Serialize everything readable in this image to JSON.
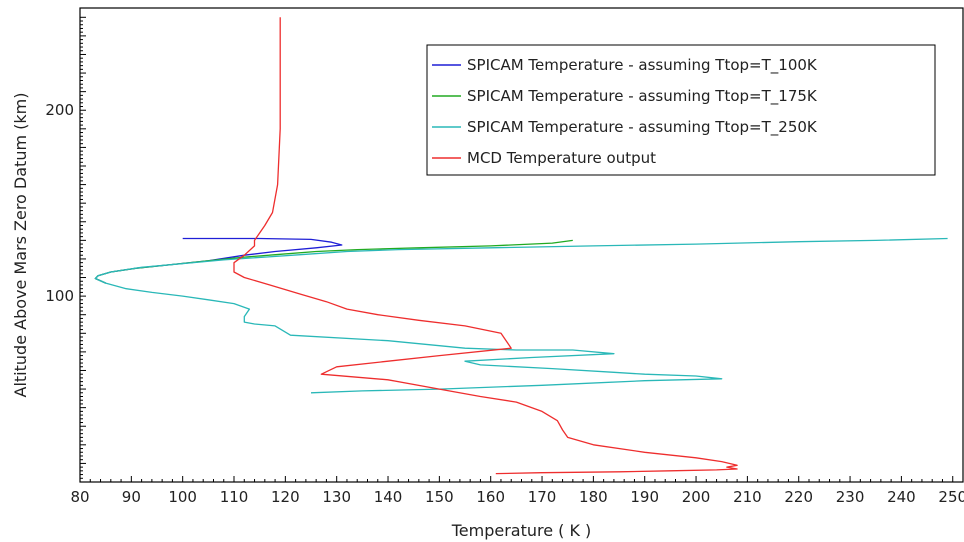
{
  "chart_data": {
    "type": "line",
    "title": "",
    "xlabel": "Temperature ( K )",
    "ylabel": "Altitude Above Mars Zero Datum (km)",
    "xlim": [
      80,
      252
    ],
    "ylim": [
      0,
      255
    ],
    "x_ticks": [
      80,
      90,
      100,
      110,
      120,
      130,
      140,
      150,
      160,
      170,
      180,
      190,
      200,
      210,
      220,
      230,
      240,
      250
    ],
    "y_ticks": [
      100,
      200
    ],
    "grid": false,
    "legend_position": "top-right",
    "series": [
      {
        "name": "SPICAM Temperature - assuming Ttop=T_100K",
        "color": "#1f1fd6",
        "points": [
          [
            100,
            131
          ],
          [
            115,
            131
          ],
          [
            125,
            130.5
          ],
          [
            129,
            129
          ],
          [
            131,
            127.5
          ],
          [
            126,
            126
          ],
          [
            118,
            124
          ],
          [
            112,
            122
          ],
          [
            105,
            119
          ],
          [
            98,
            117
          ],
          [
            91,
            115
          ],
          [
            86,
            113
          ],
          [
            83.5,
            111
          ],
          [
            83,
            109.5
          ],
          [
            85,
            107
          ]
        ]
      },
      {
        "name": "SPICAM Temperature - assuming Ttop=T_175K",
        "color": "#22aa22",
        "points": [
          [
            176,
            130
          ],
          [
            172,
            128.5
          ],
          [
            160,
            127
          ],
          [
            146,
            126
          ],
          [
            134,
            125
          ],
          [
            126,
            124
          ],
          [
            119,
            122.5
          ],
          [
            112,
            121
          ],
          [
            105,
            119
          ],
          [
            98,
            117
          ],
          [
            91,
            115
          ],
          [
            86,
            113
          ],
          [
            83.5,
            111
          ],
          [
            83,
            109.5
          ],
          [
            85,
            107
          ]
        ]
      },
      {
        "name": "SPICAM Temperature - assuming Ttop=T_250K",
        "color": "#2ab8b8",
        "points": [
          [
            249,
            131
          ],
          [
            235,
            130
          ],
          [
            220,
            129.3
          ],
          [
            200,
            128
          ],
          [
            180,
            127
          ],
          [
            160,
            126
          ],
          [
            142,
            125
          ],
          [
            132,
            124
          ],
          [
            124,
            122.5
          ],
          [
            116,
            121
          ],
          [
            108,
            119.5
          ],
          [
            100,
            117.5
          ],
          [
            92,
            115.5
          ],
          [
            86,
            113
          ],
          [
            83.5,
            111
          ],
          [
            83,
            109.5
          ],
          [
            85,
            107
          ],
          [
            89,
            104
          ],
          [
            94,
            102
          ],
          [
            100,
            100
          ],
          [
            105,
            98
          ],
          [
            110,
            96
          ],
          [
            113,
            93
          ],
          [
            112,
            89
          ],
          [
            112,
            86
          ],
          [
            114,
            85
          ],
          [
            118,
            84
          ],
          [
            121,
            79
          ],
          [
            140,
            76
          ],
          [
            155,
            72
          ],
          [
            165,
            71
          ],
          [
            176,
            71
          ],
          [
            184,
            69
          ],
          [
            168,
            67
          ],
          [
            155,
            65
          ],
          [
            158,
            63
          ],
          [
            172,
            61
          ],
          [
            184,
            59
          ],
          [
            190,
            58
          ],
          [
            200,
            57
          ],
          [
            205,
            55.5
          ],
          [
            190,
            54.5
          ],
          [
            170,
            52
          ],
          [
            150,
            50
          ],
          [
            135,
            49
          ],
          [
            125,
            48
          ]
        ]
      },
      {
        "name": "MCD Temperature output",
        "color": "#ee2e2e",
        "points": [
          [
            119,
            250
          ],
          [
            119,
            220
          ],
          [
            119,
            190
          ],
          [
            118.5,
            160
          ],
          [
            117.5,
            145
          ],
          [
            116,
            138
          ],
          [
            115,
            134
          ],
          [
            114,
            130
          ],
          [
            114,
            127
          ],
          [
            112,
            122
          ],
          [
            110,
            118
          ],
          [
            110,
            113
          ],
          [
            112,
            110
          ],
          [
            117,
            106
          ],
          [
            123,
            101
          ],
          [
            128,
            97
          ],
          [
            132,
            93
          ],
          [
            138,
            90
          ],
          [
            146,
            87
          ],
          [
            155,
            84
          ],
          [
            162,
            80
          ],
          [
            163,
            76
          ],
          [
            164,
            72
          ],
          [
            150,
            68
          ],
          [
            140,
            65
          ],
          [
            130,
            62
          ],
          [
            127,
            58
          ],
          [
            140,
            55
          ],
          [
            150,
            50
          ],
          [
            158,
            46
          ],
          [
            165,
            43
          ],
          [
            170,
            38
          ],
          [
            173,
            33
          ],
          [
            174,
            28
          ],
          [
            175,
            24
          ],
          [
            180,
            20
          ],
          [
            190,
            16
          ],
          [
            200,
            13
          ],
          [
            205,
            11
          ],
          [
            208,
            9
          ],
          [
            206,
            8
          ],
          [
            208,
            7
          ],
          [
            204,
            6.5
          ],
          [
            195,
            6
          ],
          [
            185,
            5.5
          ],
          [
            170,
            5
          ],
          [
            161,
            4.5
          ]
        ]
      }
    ]
  }
}
